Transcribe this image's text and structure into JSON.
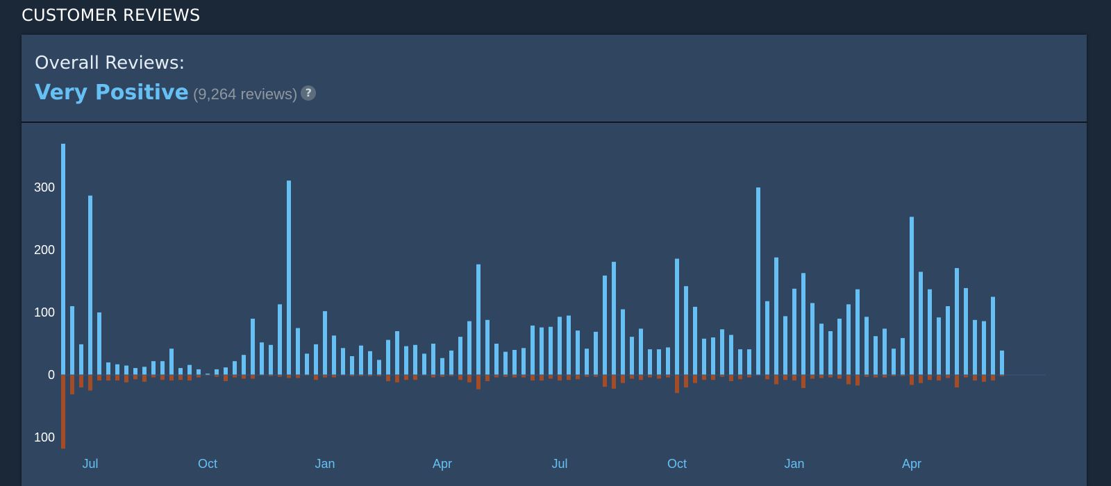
{
  "header": {
    "title": "CUSTOMER REVIEWS"
  },
  "summary": {
    "label": "Overall Reviews:",
    "rating": "Very Positive",
    "count_text": "(9,264 reviews)",
    "help_glyph": "?"
  },
  "colors": {
    "page_background": "#1b2838",
    "panel_background": "#2f4560",
    "positive_bar": "#66c0f4",
    "negative_bar": "#a34c25",
    "rating_text": "#66c0f4"
  },
  "chart_data": {
    "type": "bar",
    "title": "",
    "xlabel": "",
    "ylabel": "",
    "ylim": [
      -120,
      380
    ],
    "y_ticks": [
      {
        "value": 300,
        "label": "300"
      },
      {
        "value": 200,
        "label": "200"
      },
      {
        "value": 100,
        "label": "100"
      },
      {
        "value": 0,
        "label": "0"
      },
      {
        "value": -100,
        "label": "100"
      }
    ],
    "x_ticks": [
      {
        "index": 3,
        "label": "Jul"
      },
      {
        "index": 16,
        "label": "Oct"
      },
      {
        "index": 29,
        "label": "Jan"
      },
      {
        "index": 42,
        "label": "Apr"
      },
      {
        "index": 55,
        "label": "Jul"
      },
      {
        "index": 68,
        "label": "Oct"
      },
      {
        "index": 81,
        "label": "Jan"
      },
      {
        "index": 94,
        "label": "Apr"
      }
    ],
    "series": [
      {
        "name": "positive",
        "color": "#66c0f4",
        "values": [
          370,
          110,
          49,
          287,
          100,
          20,
          17,
          15,
          11,
          13,
          22,
          22,
          42,
          11,
          16,
          9,
          2,
          9,
          12,
          22,
          32,
          90,
          52,
          48,
          113,
          311,
          75,
          34,
          49,
          102,
          63,
          43,
          30,
          47,
          38,
          24,
          56,
          70,
          46,
          48,
          34,
          50,
          27,
          39,
          61,
          86,
          177,
          88,
          50,
          37,
          40,
          43,
          79,
          76,
          77,
          93,
          95,
          71,
          42,
          69,
          159,
          181,
          105,
          61,
          74,
          41,
          41,
          44,
          186,
          142,
          109,
          58,
          60,
          73,
          64,
          41,
          41,
          300,
          118,
          188,
          94,
          138,
          163,
          115,
          82,
          70,
          90,
          113,
          137,
          93,
          62,
          74,
          42,
          59,
          253,
          165,
          137,
          92,
          110,
          171,
          139,
          88,
          86,
          125,
          39
        ]
      },
      {
        "name": "negative",
        "color": "#a34c25",
        "values": [
          -118,
          -31,
          -20,
          -25,
          -9,
          -9,
          -9,
          -12,
          -7,
          -11,
          -4,
          -8,
          -9,
          -8,
          -9,
          -4,
          -1,
          -3,
          -10,
          -4,
          -6,
          -6,
          -1,
          -2,
          -3,
          -5,
          -5,
          -1,
          -8,
          -4,
          -4,
          -1,
          -2,
          -2,
          -2,
          -2,
          -10,
          -12,
          -8,
          -8,
          -1,
          -4,
          -3,
          -2,
          -8,
          -12,
          -23,
          -10,
          -4,
          -3,
          -4,
          -4,
          -9,
          -9,
          -6,
          -9,
          -8,
          -7,
          -3,
          -3,
          -19,
          -22,
          -13,
          -6,
          -8,
          -4,
          -6,
          -4,
          -29,
          -20,
          -13,
          -8,
          -8,
          -3,
          -10,
          -7,
          -4,
          -1,
          -7,
          -15,
          -8,
          -9,
          -21,
          -6,
          -5,
          -4,
          -6,
          -15,
          -17,
          -3,
          -4,
          -4,
          -2,
          -2,
          -16,
          -13,
          -8,
          -9,
          -5,
          -20,
          -4,
          -9,
          -11,
          -9,
          -2
        ]
      }
    ]
  }
}
